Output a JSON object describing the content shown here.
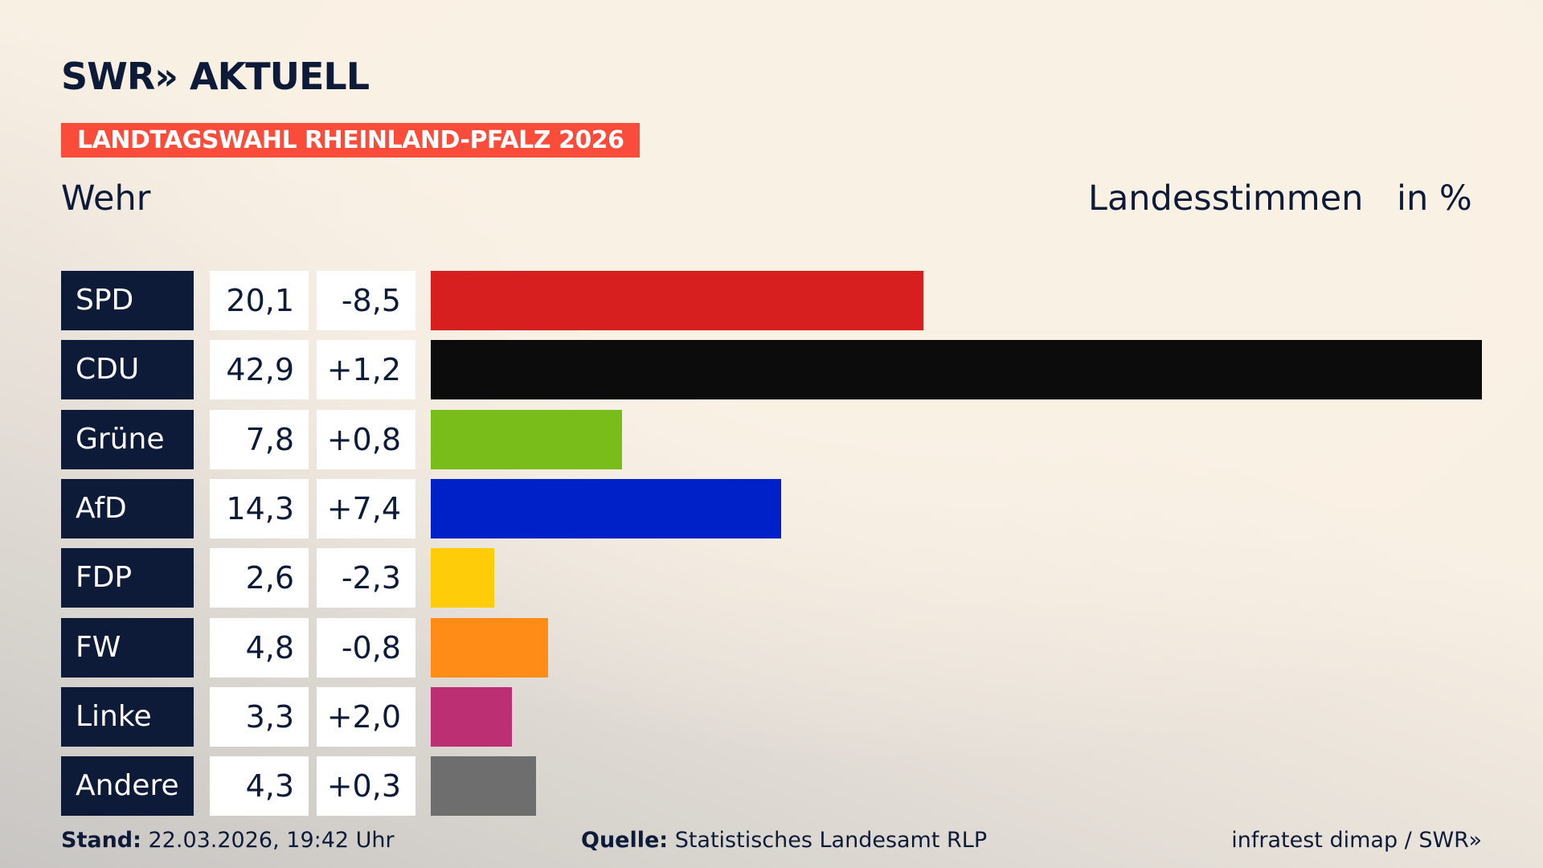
{
  "logo": "SWR» AKTUELL",
  "banner": "LANDTAGSWAHL RHEINLAND-PFALZ 2026",
  "region": "Wehr",
  "label_votes": "Landesstimmen",
  "label_unit": "in %",
  "chart_data": {
    "type": "bar",
    "orientation": "horizontal",
    "categories": [
      "SPD",
      "CDU",
      "Grüne",
      "AfD",
      "FDP",
      "FW",
      "Linke",
      "Andere"
    ],
    "values": [
      20.1,
      42.9,
      7.8,
      14.3,
      2.6,
      4.8,
      3.3,
      4.3
    ],
    "value_labels": [
      "20,1",
      "42,9",
      "7,8",
      "14,3",
      "2,6",
      "4,8",
      "3,3",
      "4,3"
    ],
    "diff_labels": [
      "-8,5",
      "+1,2",
      "+0,8",
      "+7,4",
      "-2,3",
      "-0,8",
      "+2,0",
      "+0,3"
    ],
    "colors": [
      "#d81f1f",
      "#0c0c0c",
      "#79bd1a",
      "#0021c8",
      "#ffcc0a",
      "#ff8c17",
      "#bc2f73",
      "#6e6e6e"
    ]
  },
  "footer": {
    "stand_label": "Stand:",
    "stand_value": " 22.03.2026, 19:42 Uhr",
    "source_label": "Quelle:",
    "source_value": " Statistisches Landesamt RLP",
    "credit": "infratest dimap / SWR»"
  }
}
